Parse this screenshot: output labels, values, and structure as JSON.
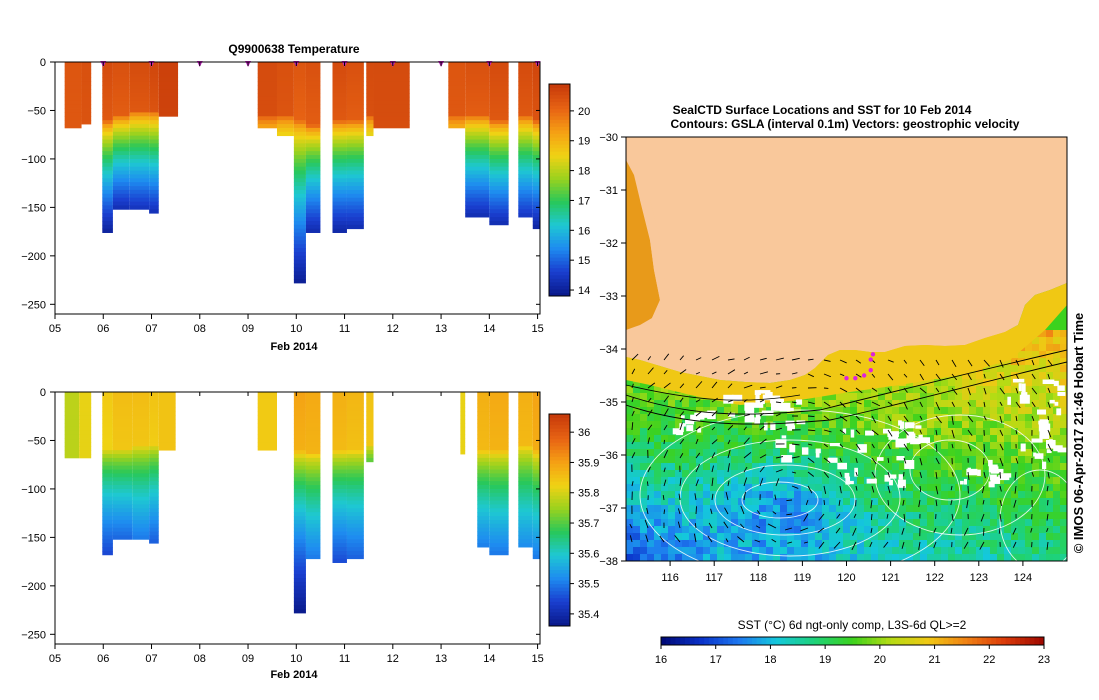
{
  "colors": {
    "land": "#f9c89b",
    "temp_scale": [
      "#0a1a8c",
      "#1a3fd0",
      "#1e8cf0",
      "#1ec8d2",
      "#28c85a",
      "#9ad21e",
      "#f0d214",
      "#f5a014",
      "#e86414",
      "#c83c0a"
    ],
    "sal_scale": [
      "#0a1a8c",
      "#1a3fd0",
      "#1e8cf0",
      "#1ec8d2",
      "#28c85a",
      "#9ad21e",
      "#f0d214",
      "#f5a014",
      "#e86414",
      "#c83c0a"
    ],
    "sst_scale": [
      "#000a78",
      "#0a32c8",
      "#1e78f0",
      "#14c8dc",
      "#1ed278",
      "#3cd21e",
      "#b4dc14",
      "#f0c814",
      "#f08214",
      "#dc3c0a",
      "#a00a00"
    ]
  },
  "chart_data": [
    {
      "type": "heatmap",
      "title": "Q9900638  Temperature",
      "xlabel": "Feb 2014",
      "x_ticks": [
        "05",
        "06",
        "07",
        "08",
        "09",
        "10",
        "11",
        "12",
        "13",
        "14",
        "15"
      ],
      "y_ticks": [
        "0",
        "-50",
        "-100",
        "-150",
        "-200",
        "-250"
      ],
      "ylim": [
        -260,
        0
      ],
      "xlim": [
        5,
        15.05
      ],
      "colorbar_ticks": [
        "14",
        "15",
        "16",
        "17",
        "18",
        "19",
        "20"
      ],
      "colorbar_range": [
        13.8,
        20.9
      ],
      "profile_markers_x": [
        6,
        7,
        8,
        9,
        10,
        11,
        12,
        13,
        14,
        15
      ],
      "profiles": [
        {
          "x0": 5.2,
          "x1": 5.55,
          "depth": 66,
          "mld": 66,
          "surface": 20.4,
          "bottom": 19.2
        },
        {
          "x0": 5.55,
          "x1": 5.75,
          "depth": 64,
          "mld": 64,
          "surface": 20.5,
          "bottom": 19.0
        },
        {
          "x0": 5.98,
          "x1": 6.2,
          "depth": 175,
          "mld": 60,
          "surface": 20.6,
          "bottom": 14.0
        },
        {
          "x0": 6.2,
          "x1": 6.55,
          "depth": 150,
          "mld": 55,
          "surface": 20.5,
          "bottom": 14.3
        },
        {
          "x0": 6.55,
          "x1": 6.95,
          "depth": 150,
          "mld": 50,
          "surface": 20.6,
          "bottom": 14.4
        },
        {
          "x0": 6.95,
          "x1": 7.15,
          "depth": 155,
          "mld": 50,
          "surface": 20.7,
          "bottom": 14.3
        },
        {
          "x0": 7.15,
          "x1": 7.55,
          "depth": 55,
          "mld": 55,
          "surface": 20.8,
          "bottom": 20.0
        },
        {
          "x0": 9.2,
          "x1": 9.6,
          "depth": 65,
          "mld": 55,
          "surface": 20.6,
          "bottom": 19.4
        },
        {
          "x0": 9.6,
          "x1": 9.95,
          "depth": 75,
          "mld": 55,
          "surface": 20.5,
          "bottom": 18.5
        },
        {
          "x0": 9.95,
          "x1": 10.2,
          "depth": 228,
          "mld": 60,
          "surface": 20.4,
          "bottom": 13.9
        },
        {
          "x0": 10.2,
          "x1": 10.5,
          "depth": 175,
          "mld": 65,
          "surface": 20.5,
          "bottom": 14.2
        },
        {
          "x0": 10.75,
          "x1": 11.05,
          "depth": 175,
          "mld": 60,
          "surface": 20.6,
          "bottom": 14.1
        },
        {
          "x0": 11.05,
          "x1": 11.4,
          "depth": 172,
          "mld": 60,
          "surface": 20.5,
          "bottom": 14.2
        },
        {
          "x0": 11.45,
          "x1": 11.6,
          "depth": 75,
          "mld": 55,
          "surface": 20.6,
          "bottom": 18.4
        },
        {
          "x0": 11.6,
          "x1": 12.35,
          "depth": 66,
          "mld": 66,
          "surface": 20.6,
          "bottom": 19.6
        },
        {
          "x0": 13.15,
          "x1": 13.5,
          "depth": 66,
          "mld": 55,
          "surface": 20.4,
          "bottom": 19.2
        },
        {
          "x0": 13.5,
          "x1": 14.0,
          "depth": 160,
          "mld": 55,
          "surface": 20.5,
          "bottom": 14.2
        },
        {
          "x0": 14.0,
          "x1": 14.4,
          "depth": 165,
          "mld": 60,
          "surface": 20.6,
          "bottom": 14.3
        },
        {
          "x0": 14.6,
          "x1": 14.9,
          "depth": 160,
          "mld": 55,
          "surface": 20.6,
          "bottom": 14.4
        },
        {
          "x0": 14.9,
          "x1": 15.05,
          "depth": 170,
          "mld": 60,
          "surface": 20.7,
          "bottom": 14.1
        }
      ]
    },
    {
      "type": "heatmap",
      "title": "",
      "xlabel": "Feb 2014",
      "x_ticks": [
        "05",
        "06",
        "07",
        "08",
        "09",
        "10",
        "11",
        "12",
        "13",
        "14",
        "15"
      ],
      "y_ticks": [
        "0",
        "-50",
        "-100",
        "-150",
        "-200",
        "-250"
      ],
      "ylim": [
        -260,
        0
      ],
      "xlim": [
        5,
        15.05
      ],
      "colorbar_ticks": [
        "35.4",
        "35.5",
        "35.6",
        "35.7",
        "35.8",
        "35.9",
        "36"
      ],
      "colorbar_range": [
        35.36,
        36.06
      ],
      "profiles": [
        {
          "x0": 5.2,
          "x1": 5.5,
          "depth": 66,
          "mld": 66,
          "surface": 35.78,
          "bottom": 35.72
        },
        {
          "x0": 5.5,
          "x1": 5.75,
          "depth": 68,
          "mld": 66,
          "surface": 35.82,
          "bottom": 35.74
        },
        {
          "x0": 5.98,
          "x1": 6.2,
          "depth": 165,
          "mld": 60,
          "surface": 35.84,
          "bottom": 35.45
        },
        {
          "x0": 6.2,
          "x1": 6.6,
          "depth": 150,
          "mld": 58,
          "surface": 35.86,
          "bottom": 35.48
        },
        {
          "x0": 6.6,
          "x1": 6.95,
          "depth": 150,
          "mld": 55,
          "surface": 35.86,
          "bottom": 35.5
        },
        {
          "x0": 6.95,
          "x1": 7.15,
          "depth": 155,
          "mld": 55,
          "surface": 35.85,
          "bottom": 35.47
        },
        {
          "x0": 7.15,
          "x1": 7.5,
          "depth": 60,
          "mld": 60,
          "surface": 35.85,
          "bottom": 35.84
        },
        {
          "x0": 9.2,
          "x1": 9.6,
          "depth": 60,
          "mld": 60,
          "surface": 35.84,
          "bottom": 35.82
        },
        {
          "x0": 9.95,
          "x1": 10.2,
          "depth": 228,
          "mld": 60,
          "surface": 35.9,
          "bottom": 35.36
        },
        {
          "x0": 10.2,
          "x1": 10.5,
          "depth": 170,
          "mld": 62,
          "surface": 35.89,
          "bottom": 35.5
        },
        {
          "x0": 10.75,
          "x1": 11.05,
          "depth": 175,
          "mld": 60,
          "surface": 35.88,
          "bottom": 35.45
        },
        {
          "x0": 11.05,
          "x1": 11.4,
          "depth": 172,
          "mld": 60,
          "surface": 35.87,
          "bottom": 35.47
        },
        {
          "x0": 11.45,
          "x1": 11.6,
          "depth": 72,
          "mld": 55,
          "surface": 35.85,
          "bottom": 35.7
        },
        {
          "x0": 13.4,
          "x1": 13.5,
          "depth": 62,
          "mld": 62,
          "surface": 35.82,
          "bottom": 35.8
        },
        {
          "x0": 13.75,
          "x1": 14.0,
          "depth": 160,
          "mld": 60,
          "surface": 35.88,
          "bottom": 35.5
        },
        {
          "x0": 14.0,
          "x1": 14.4,
          "depth": 165,
          "mld": 60,
          "surface": 35.89,
          "bottom": 35.5
        },
        {
          "x0": 14.6,
          "x1": 14.9,
          "depth": 158,
          "mld": 55,
          "surface": 35.88,
          "bottom": 35.52
        },
        {
          "x0": 14.9,
          "x1": 15.05,
          "depth": 170,
          "mld": 60,
          "surface": 35.9,
          "bottom": 35.5
        }
      ]
    },
    {
      "type": "heatmap",
      "title": "SealCTD Surface Locations and SST for 10 Feb 2014",
      "subtitle": "Contours: GSLA (interval 0.1m) Vectors: geostrophic velocity",
      "x_ticks": [
        "116",
        "117",
        "118",
        "119",
        "120",
        "121",
        "122",
        "123",
        "124"
      ],
      "x_tick_values": [
        116,
        117,
        118,
        119,
        120,
        121,
        122,
        123,
        124
      ],
      "y_ticks": [
        "-30",
        "-31",
        "-32",
        "-33",
        "-34",
        "-35",
        "-36",
        "-37",
        "-38"
      ],
      "y_tick_values": [
        -30,
        -31,
        -32,
        -33,
        -34,
        -35,
        -36,
        -37,
        -38
      ],
      "xlim": [
        115.0,
        125.0
      ],
      "ylim": [
        -38,
        -30
      ],
      "colorbar_label": "SST (°C) 6d ngt-only comp, L3S-6d QL>=2",
      "colorbar_ticks": [
        "16",
        "17",
        "18",
        "19",
        "20",
        "21",
        "22",
        "23"
      ],
      "colorbar_range": [
        16,
        23
      ],
      "seal_locations": [
        [
          120.0,
          -34.55
        ],
        [
          120.2,
          -34.55
        ],
        [
          120.4,
          -34.5
        ],
        [
          120.55,
          -34.4
        ],
        [
          120.55,
          -34.2
        ],
        [
          120.6,
          -34.1
        ]
      ],
      "side_label": "© IMOS 06-Apr-2017 21:46 Hobart Time"
    }
  ]
}
